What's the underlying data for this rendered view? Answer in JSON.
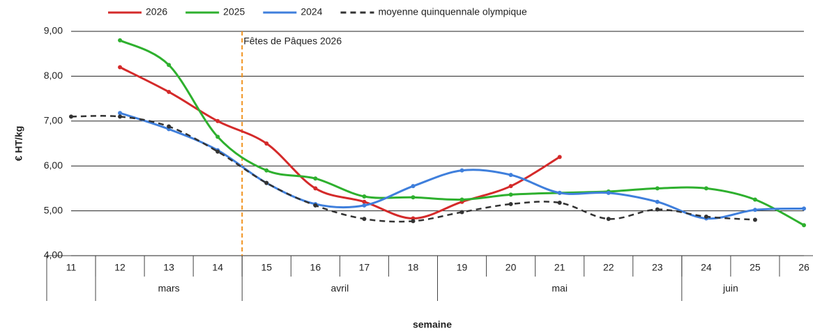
{
  "chart_data": {
    "type": "line",
    "y_label": "€ HT/kg",
    "x_label": "semaine",
    "x": [
      11,
      12,
      13,
      14,
      15,
      16,
      17,
      18,
      19,
      20,
      21,
      22,
      23,
      24,
      25,
      26
    ],
    "xlim": [
      11,
      26
    ],
    "ylim": [
      4,
      9
    ],
    "yticks": [
      {
        "value": 4,
        "label": "4,00"
      },
      {
        "value": 5,
        "label": "5,00"
      },
      {
        "value": 6,
        "label": "6,00"
      },
      {
        "value": 7,
        "label": "7,00"
      },
      {
        "value": 8,
        "label": "8,00"
      },
      {
        "value": 9,
        "label": "9,00"
      }
    ],
    "grid": true,
    "legend": "top",
    "months": [
      {
        "label": "mars",
        "from": 11.5,
        "to": 14.5
      },
      {
        "label": "avril",
        "from": 14.5,
        "to": 18.5
      },
      {
        "label": "mai",
        "from": 18.5,
        "to": 23.5
      },
      {
        "label": "juin",
        "from": 23.5,
        "to": 26.5
      }
    ],
    "annotation": {
      "text": "Fêtes de Pâques 2026",
      "x": 14.5,
      "color": "#f0921e"
    },
    "series": [
      {
        "name": "2026",
        "color": "#d42a2a",
        "dashed": false,
        "values": [
          null,
          8.2,
          7.65,
          7.0,
          6.5,
          5.5,
          5.2,
          4.83,
          5.2,
          5.55,
          6.2,
          null,
          null,
          null,
          null,
          null
        ]
      },
      {
        "name": "2025",
        "color": "#2eb02e",
        "dashed": false,
        "values": [
          null,
          8.8,
          8.25,
          6.65,
          5.9,
          5.72,
          5.32,
          5.3,
          5.25,
          5.36,
          5.4,
          5.43,
          5.5,
          5.5,
          5.25,
          4.68
        ]
      },
      {
        "name": "2024",
        "color": "#3f7fdc",
        "dashed": false,
        "values": [
          null,
          7.18,
          6.82,
          6.35,
          5.62,
          5.15,
          5.12,
          5.55,
          5.9,
          5.8,
          5.4,
          5.4,
          5.2,
          4.83,
          5.02,
          5.05
        ]
      },
      {
        "name": "moyenne quinquennale olympique",
        "color": "#333333",
        "dashed": true,
        "values": [
          7.1,
          7.1,
          6.88,
          6.32,
          5.62,
          5.12,
          4.82,
          4.77,
          4.97,
          5.15,
          5.18,
          4.82,
          5.03,
          4.87,
          4.8,
          null
        ]
      }
    ]
  }
}
